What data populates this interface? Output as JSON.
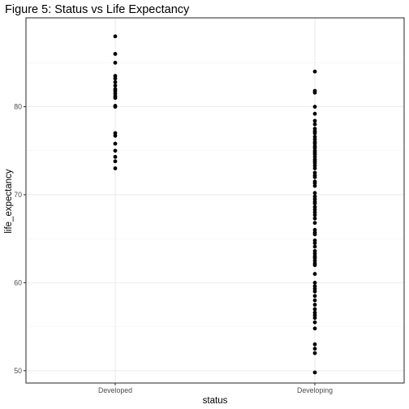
{
  "chart_data": {
    "type": "scatter",
    "title": "Figure 5: Status vs Life Expectancy",
    "xlabel": "status",
    "ylabel": "life_expectancy",
    "categories": [
      "Developed",
      "Developing"
    ],
    "ylim": [
      48.6,
      90.1
    ],
    "yticks": [
      50,
      60,
      70,
      80
    ],
    "grid": true,
    "legend": "none",
    "series": [
      {
        "category": "Developed",
        "values": [
          88,
          86,
          85,
          83.5,
          83.2,
          82.8,
          82.4,
          82,
          81.8,
          81.5,
          81.2,
          81,
          80.1,
          80,
          77,
          76.7,
          75.8,
          75,
          74.3,
          73.8,
          73
        ]
      },
      {
        "category": "Developing",
        "values": [
          84,
          81.8,
          81.6,
          80,
          79.2,
          78.4,
          78,
          77.5,
          77.2,
          77,
          76.6,
          76.3,
          76,
          75.8,
          75.5,
          75.3,
          75,
          74.8,
          74.6,
          74.3,
          74,
          73.8,
          73.6,
          73.3,
          73,
          72.5,
          72.2,
          72,
          71.5,
          71.3,
          71,
          70.2,
          69.8,
          69.5,
          69.2,
          69,
          68.6,
          68.3,
          68,
          67.7,
          67.3,
          66.8,
          66,
          65.7,
          65.5,
          64.8,
          64.5,
          64.1,
          63.6,
          63.3,
          63,
          62.8,
          62.5,
          62.2,
          62,
          61,
          60,
          59.6,
          59.3,
          59,
          58.5,
          58,
          57.5,
          57,
          56.6,
          56.3,
          56,
          55.5,
          54.8,
          53,
          52.5,
          52,
          49.8
        ]
      }
    ]
  }
}
